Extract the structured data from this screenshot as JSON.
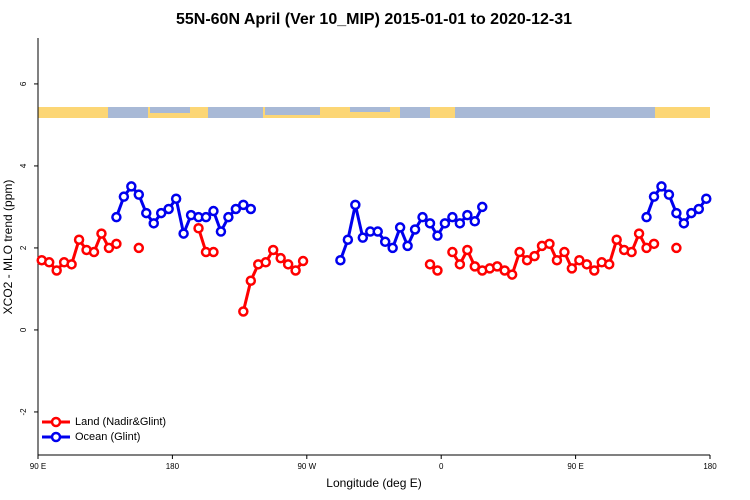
{
  "chart_data": {
    "type": "line",
    "title": "55N-60N April (Ver 10_MIP)   2015-01-01 to 2020-12-31",
    "x_label": "Longitude (deg E)",
    "y_label": "XCO2 - MLO trend (ppm)",
    "x": [
      92.5,
      97.5,
      102.5,
      107.5,
      112.5,
      117.5,
      122.5,
      127.5,
      132.5,
      137.5,
      142.5,
      147.5,
      152.5,
      157.5,
      162.5,
      167.5,
      172.5,
      177.5,
      182.5,
      187.5,
      192.5,
      197.5,
      202.5,
      207.5,
      212.5,
      217.5,
      222.5,
      227.5,
      232.5,
      237.5,
      242.5,
      247.5,
      252.5,
      257.5,
      262.5,
      267.5,
      272.5,
      277.5,
      282.5,
      287.5,
      292.5,
      297.5,
      302.5,
      307.5,
      312.5,
      317.5,
      322.5,
      327.5,
      332.5,
      337.5,
      342.5,
      347.5,
      352.5,
      357.5,
      362.5,
      367.5,
      372.5,
      377.5,
      382.5,
      387.5,
      392.5,
      397.5,
      402.5,
      407.5,
      412.5,
      417.5,
      422.5,
      427.5,
      432.5,
      437.5,
      442.5,
      447.5,
      452.5,
      457.5,
      462.5,
      467.5,
      472.5,
      477.5,
      482.5,
      487.5,
      492.5,
      497.5,
      502.5,
      507.5,
      512.5,
      517.5,
      522.5,
      527.5,
      532.5,
      537.5
    ],
    "series": [
      {
        "name": "Land (Nadir&Glint)",
        "color": "#ff0000",
        "values": [
          1.7,
          1.65,
          1.45,
          1.65,
          1.6,
          2.2,
          1.95,
          1.9,
          2.35,
          2.0,
          2.1,
          null,
          null,
          2.0,
          null,
          null,
          null,
          null,
          null,
          null,
          null,
          2.48,
          1.9,
          1.9,
          null,
          null,
          null,
          0.45,
          1.2,
          1.6,
          1.65,
          1.95,
          1.75,
          1.6,
          1.45,
          1.68,
          null,
          null,
          null,
          null,
          null,
          null,
          null,
          null,
          null,
          null,
          null,
          null,
          null,
          null,
          null,
          null,
          1.6,
          1.45,
          null,
          1.9,
          1.6,
          1.95,
          1.55,
          1.45,
          1.5,
          1.55,
          1.45,
          1.35,
          1.9,
          1.7,
          1.8,
          2.05,
          2.1,
          1.7,
          1.9,
          1.5,
          1.7,
          1.6,
          1.45,
          1.65,
          1.6,
          2.2,
          1.95,
          1.9,
          2.35,
          2.0,
          2.1,
          null,
          null,
          2.0,
          null,
          null,
          null,
          null
        ]
      },
      {
        "name": "Ocean (Glint)",
        "color": "#0000ee",
        "values": [
          null,
          null,
          null,
          null,
          null,
          null,
          null,
          null,
          null,
          null,
          2.75,
          3.25,
          3.5,
          3.3,
          2.85,
          2.6,
          2.85,
          2.95,
          3.2,
          2.35,
          2.8,
          2.75,
          2.75,
          2.9,
          2.4,
          2.75,
          2.95,
          3.05,
          2.95,
          null,
          null,
          null,
          null,
          null,
          null,
          null,
          null,
          null,
          null,
          null,
          1.7,
          2.2,
          3.05,
          2.25,
          2.4,
          2.4,
          2.15,
          2.0,
          2.5,
          2.05,
          2.45,
          2.75,
          2.6,
          2.3,
          2.6,
          2.75,
          2.6,
          2.8,
          2.65,
          3.0,
          null,
          null,
          null,
          null,
          null,
          null,
          null,
          null,
          null,
          null,
          null,
          null,
          null,
          null,
          null,
          null,
          null,
          null,
          null,
          null,
          null,
          2.75,
          3.25,
          3.5,
          3.3,
          2.85,
          2.6,
          2.85,
          2.95,
          3.2
        ]
      }
    ],
    "xlim": [
      90,
      540
    ],
    "xticks": [
      {
        "value": 90,
        "label": "90 E"
      },
      180,
      {
        "value": 270,
        "label": "90 W"
      },
      {
        "value": 360,
        "label": "0"
      },
      {
        "value": 450,
        "label": "90 E"
      },
      {
        "value": 540,
        "label": "180"
      }
    ],
    "ylim": [
      -3.05,
      7.12
    ],
    "yticks": [
      -2,
      0,
      2,
      4,
      6
    ],
    "legend": "bottom-left"
  }
}
